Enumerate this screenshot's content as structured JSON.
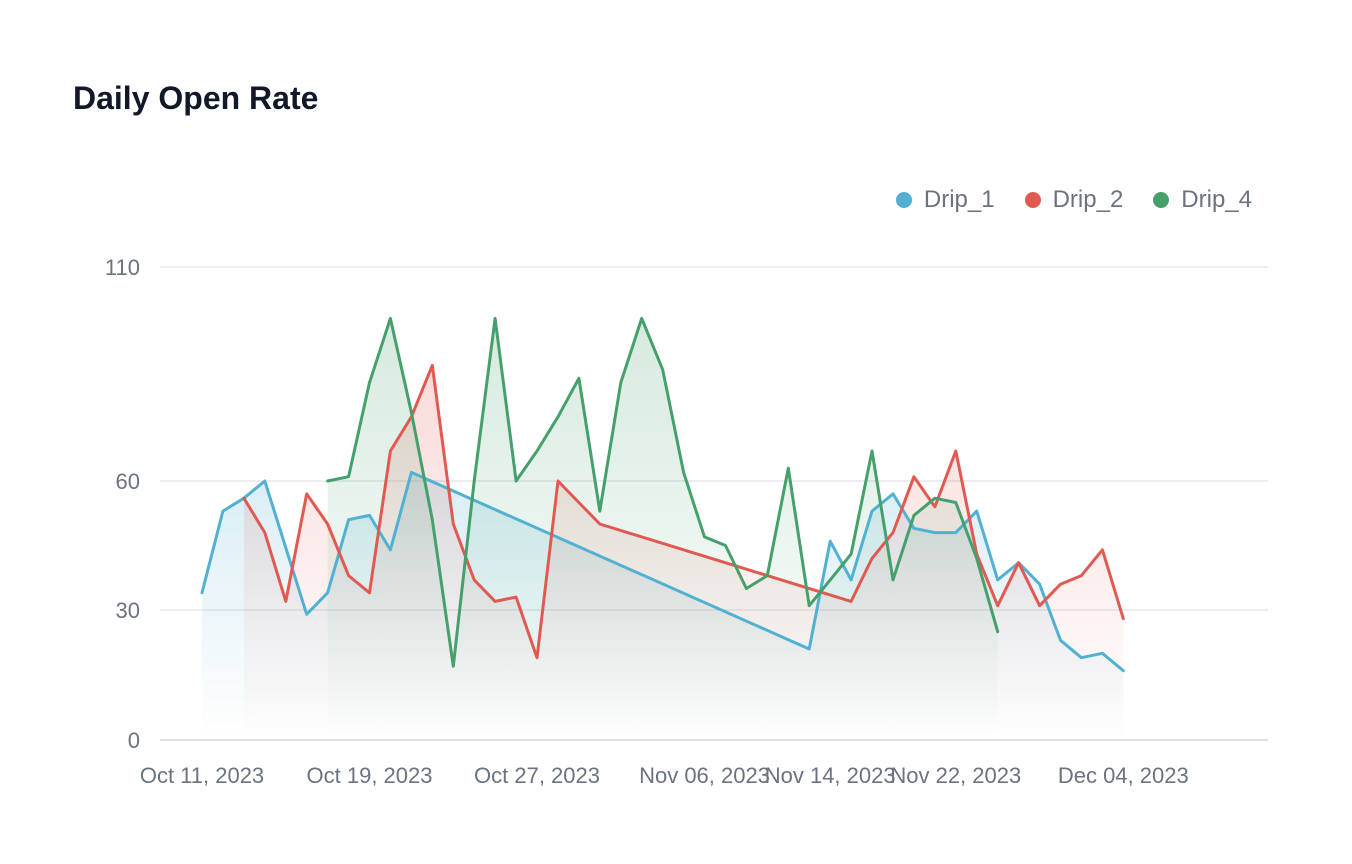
{
  "title": "Daily Open Rate",
  "legend": [
    {
      "name": "Drip_1",
      "color": "#52b1d2"
    },
    {
      "name": "Drip_2",
      "color": "#e15a52"
    },
    {
      "name": "Drip_4",
      "color": "#46a06c"
    }
  ],
  "chart_data": {
    "type": "area",
    "title": "Daily Open Rate",
    "xlabel": "",
    "ylabel": "",
    "ylim": [
      0,
      110
    ],
    "yticks": [
      0,
      30,
      60,
      110
    ],
    "grid": true,
    "legend_position": "top-right",
    "x": [
      "Oct 11, 2023",
      "Oct 12, 2023",
      "Oct 13, 2023",
      "Oct 14, 2023",
      "Oct 15, 2023",
      "Oct 16, 2023",
      "Oct 17, 2023",
      "Oct 18, 2023",
      "Oct 19, 2023",
      "Oct 20, 2023",
      "Oct 21, 2023",
      "Oct 22, 2023",
      "Oct 23, 2023",
      "Oct 24, 2023",
      "Oct 25, 2023",
      "Oct 26, 2023",
      "Oct 27, 2023",
      "Oct 28, 2023",
      "Oct 29, 2023",
      "Oct 30, 2023",
      "Oct 31, 2023",
      "Nov 01, 2023",
      "Nov 02, 2023",
      "Nov 03, 2023",
      "Nov 06, 2023",
      "Nov 07, 2023",
      "Nov 08, 2023",
      "Nov 09, 2023",
      "Nov 10, 2023",
      "Nov 13, 2023",
      "Nov 14, 2023",
      "Nov 15, 2023",
      "Nov 16, 2023",
      "Nov 17, 2023",
      "Nov 20, 2023",
      "Nov 21, 2023",
      "Nov 22, 2023",
      "Nov 23, 2023",
      "Nov 24, 2023",
      "Nov 27, 2023",
      "Nov 28, 2023",
      "Nov 29, 2023",
      "Nov 30, 2023",
      "Dec 01, 2023",
      "Dec 04, 2023",
      "Dec 05, 2023",
      "Dec 06, 2023",
      "Dec 07, 2023",
      "Dec 08, 2023",
      "Dec 11, 2023"
    ],
    "xticks": [
      "Oct 11, 2023",
      "Oct 19, 2023",
      "Oct 27, 2023",
      "Nov 06, 2023",
      "Nov 14, 2023",
      "Nov 22, 2023",
      "Dec 04, 2023"
    ],
    "series": [
      {
        "name": "Drip_1",
        "color": "#52b1d2",
        "points": [
          [
            "Oct 11, 2023",
            34
          ],
          [
            "Oct 12, 2023",
            53
          ],
          [
            "Oct 13, 2023",
            56
          ],
          [
            "Oct 14, 2023",
            60
          ],
          [
            "Oct 16, 2023",
            29
          ],
          [
            "Oct 17, 2023",
            34
          ],
          [
            "Oct 18, 2023",
            51
          ],
          [
            "Oct 19, 2023",
            52
          ],
          [
            "Oct 20, 2023",
            44
          ],
          [
            "Oct 21, 2023",
            62
          ],
          [
            "Nov 13, 2023",
            21
          ],
          [
            "Nov 14, 2023",
            46
          ],
          [
            "Nov 15, 2023",
            37
          ],
          [
            "Nov 16, 2023",
            53
          ],
          [
            "Nov 17, 2023",
            57
          ],
          [
            "Nov 20, 2023",
            49
          ],
          [
            "Nov 21, 2023",
            48
          ],
          [
            "Nov 22, 2023",
            48
          ],
          [
            "Nov 23, 2023",
            53
          ],
          [
            "Nov 24, 2023",
            37
          ],
          [
            "Nov 27, 2023",
            41
          ],
          [
            "Nov 28, 2023",
            36
          ],
          [
            "Nov 29, 2023",
            23
          ],
          [
            "Nov 30, 2023",
            19
          ],
          [
            "Dec 01, 2023",
            20
          ],
          [
            "Dec 04, 2023",
            16
          ]
        ]
      },
      {
        "name": "Drip_2",
        "color": "#e15a52",
        "points": [
          [
            "Oct 13, 2023",
            56
          ],
          [
            "Oct 14, 2023",
            48
          ],
          [
            "Oct 15, 2023",
            32
          ],
          [
            "Oct 16, 2023",
            57
          ],
          [
            "Oct 17, 2023",
            50
          ],
          [
            "Oct 18, 2023",
            38
          ],
          [
            "Oct 19, 2023",
            34
          ],
          [
            "Oct 20, 2023",
            67
          ],
          [
            "Oct 21, 2023",
            75
          ],
          [
            "Oct 22, 2023",
            87
          ],
          [
            "Oct 23, 2023",
            50
          ],
          [
            "Oct 24, 2023",
            37
          ],
          [
            "Oct 25, 2023",
            32
          ],
          [
            "Oct 26, 2023",
            33
          ],
          [
            "Oct 27, 2023",
            19
          ],
          [
            "Oct 28, 2023",
            60
          ],
          [
            "Oct 30, 2023",
            50
          ],
          [
            "Nov 15, 2023",
            32
          ],
          [
            "Nov 16, 2023",
            42
          ],
          [
            "Nov 17, 2023",
            48
          ],
          [
            "Nov 20, 2023",
            61
          ],
          [
            "Nov 21, 2023",
            54
          ],
          [
            "Nov 22, 2023",
            67
          ],
          [
            "Nov 23, 2023",
            43
          ],
          [
            "Nov 24, 2023",
            31
          ],
          [
            "Nov 27, 2023",
            41
          ],
          [
            "Nov 28, 2023",
            31
          ],
          [
            "Nov 29, 2023",
            36
          ],
          [
            "Nov 30, 2023",
            38
          ],
          [
            "Dec 01, 2023",
            44
          ],
          [
            "Dec 04, 2023",
            28
          ]
        ]
      },
      {
        "name": "Drip_4",
        "color": "#46a06c",
        "points": [
          [
            "Oct 17, 2023",
            60
          ],
          [
            "Oct 18, 2023",
            61
          ],
          [
            "Oct 19, 2023",
            83
          ],
          [
            "Oct 20, 2023",
            98
          ],
          [
            "Oct 21, 2023",
            76
          ],
          [
            "Oct 22, 2023",
            51
          ],
          [
            "Oct 23, 2023",
            17
          ],
          [
            "Oct 24, 2023",
            60
          ],
          [
            "Oct 25, 2023",
            98
          ],
          [
            "Oct 26, 2023",
            60
          ],
          [
            "Oct 27, 2023",
            67
          ],
          [
            "Oct 28, 2023",
            75
          ],
          [
            "Oct 29, 2023",
            84
          ],
          [
            "Oct 30, 2023",
            53
          ],
          [
            "Oct 31, 2023",
            83
          ],
          [
            "Nov 01, 2023",
            98
          ],
          [
            "Nov 02, 2023",
            86
          ],
          [
            "Nov 03, 2023",
            62
          ],
          [
            "Nov 06, 2023",
            47
          ],
          [
            "Nov 07, 2023",
            45
          ],
          [
            "Nov 08, 2023",
            35
          ],
          [
            "Nov 09, 2023",
            38
          ],
          [
            "Nov 10, 2023",
            63
          ],
          [
            "Nov 13, 2023",
            31
          ],
          [
            "Nov 14, 2023",
            37
          ],
          [
            "Nov 15, 2023",
            43
          ],
          [
            "Nov 16, 2023",
            67
          ],
          [
            "Nov 17, 2023",
            37
          ],
          [
            "Nov 20, 2023",
            52
          ],
          [
            "Nov 21, 2023",
            56
          ],
          [
            "Nov 22, 2023",
            55
          ],
          [
            "Nov 23, 2023",
            42
          ],
          [
            "Nov 24, 2023",
            25
          ]
        ]
      }
    ]
  }
}
